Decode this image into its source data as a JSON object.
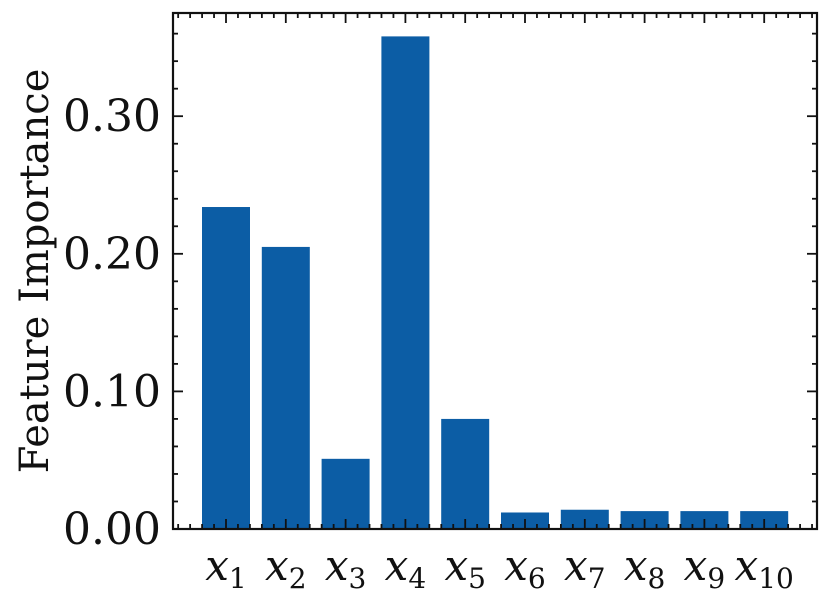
{
  "chart_data": {
    "type": "bar",
    "title": "",
    "xlabel": "",
    "ylabel": "Feature Importance",
    "categories": [
      {
        "base": "x",
        "sub": "1"
      },
      {
        "base": "x",
        "sub": "2"
      },
      {
        "base": "x",
        "sub": "3"
      },
      {
        "base": "x",
        "sub": "4"
      },
      {
        "base": "x",
        "sub": "5"
      },
      {
        "base": "x",
        "sub": "6"
      },
      {
        "base": "x",
        "sub": "7"
      },
      {
        "base": "x",
        "sub": "8"
      },
      {
        "base": "x",
        "sub": "9"
      },
      {
        "base": "x",
        "sub": "10"
      }
    ],
    "values": [
      0.234,
      0.205,
      0.051,
      0.358,
      0.08,
      0.012,
      0.014,
      0.013,
      0.013,
      0.013
    ],
    "ylim": [
      0,
      0.375
    ],
    "yticks": [
      {
        "value": 0.0,
        "label": "0.00"
      },
      {
        "value": 0.1,
        "label": "0.10"
      },
      {
        "value": 0.2,
        "label": "0.20"
      },
      {
        "value": 0.3,
        "label": "0.30"
      }
    ],
    "bar_color": "#0c5da5",
    "grid": false,
    "legend": "none"
  }
}
